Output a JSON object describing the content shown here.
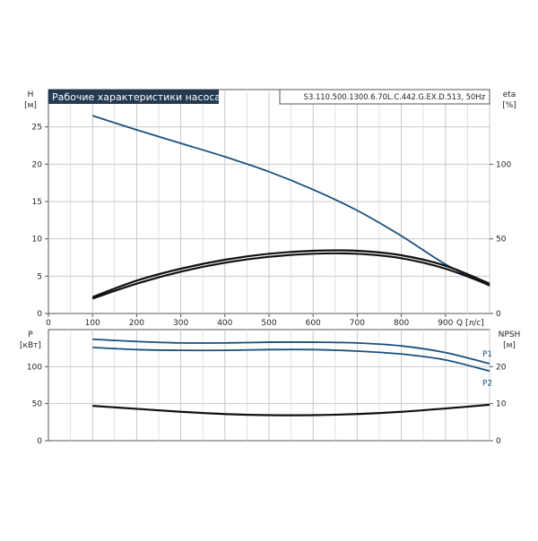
{
  "chart_data": [
    {
      "type": "line",
      "title": "Рабочие характеристики насоса",
      "model": "S3.110.500.1300.6.70L.C.442.G.EX.D.513, 50Hz",
      "ylabel": "H",
      "yunit": "[м]",
      "y2label": "eta",
      "y2unit": "[%]",
      "xlabel": "Q",
      "xunit": "[л/с]",
      "xlim": [
        0,
        1000
      ],
      "ylim": [
        0,
        30
      ],
      "y2lim": [
        0,
        150
      ],
      "xticks": [
        "0",
        "100",
        "200",
        "300",
        "400",
        "500",
        "600",
        "700",
        "800",
        "900"
      ],
      "yticks": [
        "0",
        "5",
        "10",
        "15",
        "20",
        "25"
      ],
      "y2ticks": [
        "0",
        "50",
        "100"
      ],
      "grid": true,
      "series": [
        {
          "axis": "y",
          "color": "#1a4f80",
          "x": [
            100,
            200,
            300,
            400,
            500,
            600,
            700,
            800,
            900,
            1000
          ],
          "values": [
            26.5,
            24.6,
            22.8,
            21.0,
            19.0,
            16.6,
            13.8,
            10.4,
            6.6,
            3.7
          ]
        },
        {
          "axis": "y2",
          "color": "#111111",
          "x": [
            100,
            200,
            300,
            400,
            500,
            600,
            700,
            800,
            900,
            1000
          ],
          "values": [
            10,
            20,
            28,
            34,
            38,
            40,
            40,
            37,
            30,
            19
          ]
        },
        {
          "axis": "y2",
          "color": "#111111",
          "x": [
            100,
            200,
            300,
            400,
            500,
            600,
            700,
            800,
            900,
            1000
          ],
          "values": [
            11,
            22,
            30,
            36,
            40,
            42,
            42,
            39,
            32,
            20
          ]
        }
      ]
    },
    {
      "type": "line",
      "ylabel": "P",
      "yunit": "[кВт]",
      "y2label": "NPSH",
      "y2unit": "[м]",
      "xlim": [
        0,
        1000
      ],
      "ylim": [
        0,
        150
      ],
      "y2lim": [
        0,
        30
      ],
      "yticks": [
        "0",
        "50",
        "100"
      ],
      "y2ticks": [
        "0",
        "10",
        "20"
      ],
      "grid": true,
      "series": [
        {
          "name": "P1",
          "axis": "y",
          "color": "#1a4f80",
          "x": [
            100,
            200,
            300,
            400,
            500,
            600,
            700,
            800,
            900,
            1000
          ],
          "values": [
            137,
            134,
            132,
            132,
            133,
            133,
            132,
            128,
            119,
            104
          ]
        },
        {
          "name": "P2",
          "axis": "y",
          "color": "#1a4f80",
          "x": [
            100,
            200,
            300,
            400,
            500,
            600,
            700,
            800,
            900,
            1000
          ],
          "values": [
            126,
            123,
            122,
            122,
            123,
            123,
            121,
            117,
            109,
            94
          ]
        },
        {
          "axis": "y2",
          "color": "#111111",
          "x": [
            100,
            200,
            300,
            400,
            500,
            600,
            700,
            800,
            900,
            1000
          ],
          "values": [
            9.4,
            8.6,
            7.8,
            7.2,
            6.9,
            6.9,
            7.2,
            7.8,
            8.7,
            9.7
          ]
        }
      ]
    }
  ]
}
